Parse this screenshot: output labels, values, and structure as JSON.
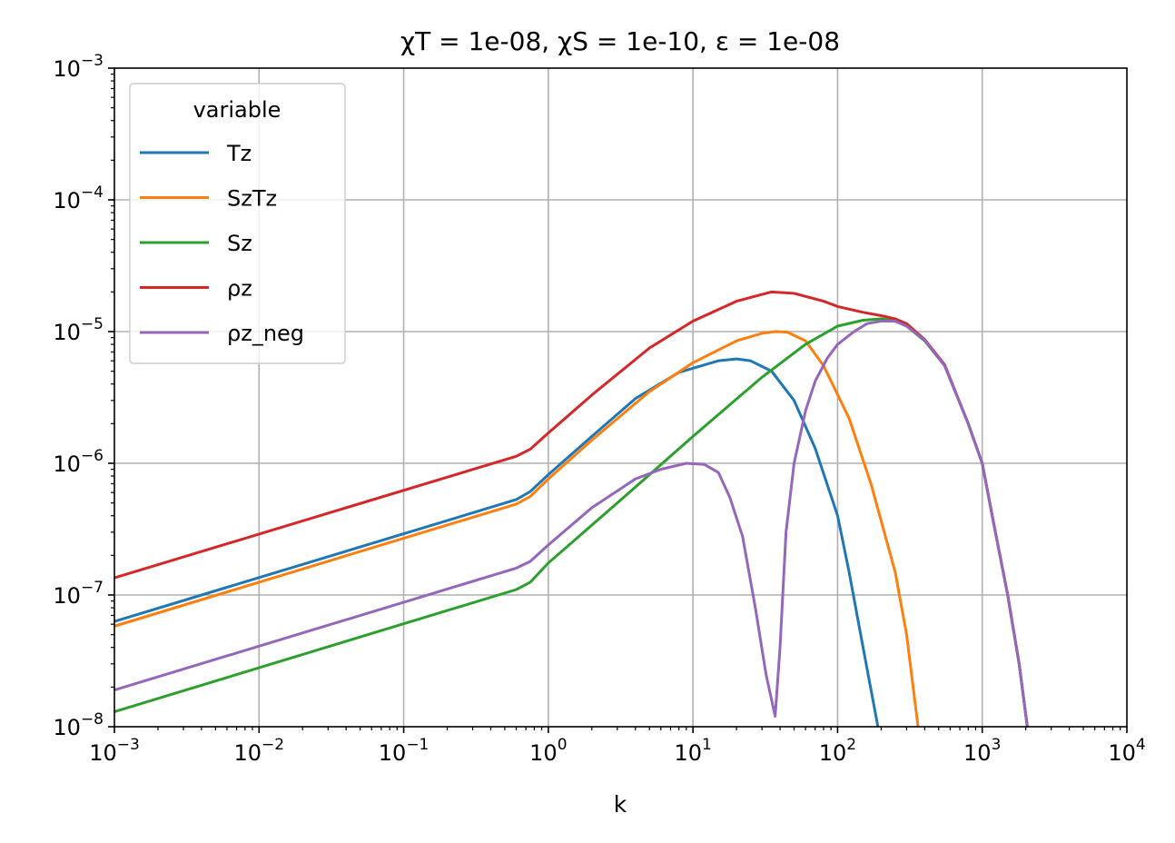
{
  "chart_data": {
    "type": "line",
    "title": "χT = 1e-08, χS = 1e-10, ε = 1e-08",
    "xlabel": "k",
    "ylabel": "",
    "xscale": "log",
    "yscale": "log",
    "xlim": [
      0.001,
      10000
    ],
    "ylim": [
      1e-08,
      0.001
    ],
    "grid": true,
    "legend": {
      "title": "variable",
      "placement": "top-left"
    },
    "x_ticks": [
      {
        "base": "10",
        "exp": "−3"
      },
      {
        "base": "10",
        "exp": "−2"
      },
      {
        "base": "10",
        "exp": "−1"
      },
      {
        "base": "10",
        "exp": "0"
      },
      {
        "base": "10",
        "exp": "1"
      },
      {
        "base": "10",
        "exp": "2"
      },
      {
        "base": "10",
        "exp": "3"
      },
      {
        "base": "10",
        "exp": "4"
      }
    ],
    "y_ticks": [
      {
        "base": "10",
        "exp": "−8"
      },
      {
        "base": "10",
        "exp": "−7"
      },
      {
        "base": "10",
        "exp": "−6"
      },
      {
        "base": "10",
        "exp": "−5"
      },
      {
        "base": "10",
        "exp": "−4"
      },
      {
        "base": "10",
        "exp": "−3"
      }
    ],
    "series": [
      {
        "name": "Tz",
        "color": "#1f77b4",
        "x": [
          0.001,
          0.6,
          0.75,
          1,
          2,
          4,
          8,
          15,
          20,
          25,
          35,
          50,
          70,
          100,
          120,
          150,
          190
        ],
        "y": [
          6.3e-08,
          5.3e-07,
          6.1e-07,
          8.2e-07,
          1.6e-06,
          3.1e-06,
          4.9e-06,
          6e-06,
          6.2e-06,
          6e-06,
          5e-06,
          3e-06,
          1.3e-06,
          4e-07,
          1.5e-07,
          4e-08,
          1e-08
        ]
      },
      {
        "name": "SzTz",
        "color": "#ff7f0e",
        "x": [
          0.001,
          0.6,
          0.75,
          1,
          2,
          5,
          10,
          20,
          30,
          37,
          45,
          60,
          80,
          120,
          170,
          250,
          300,
          360
        ],
        "y": [
          5.8e-08,
          4.9e-07,
          5.6e-07,
          7.6e-07,
          1.5e-06,
          3.5e-06,
          5.8e-06,
          8.5e-06,
          9.7e-06,
          1e-05,
          9.9e-06,
          8.5e-06,
          5.5e-06,
          2.2e-06,
          7e-07,
          1.5e-07,
          5e-08,
          1e-08
        ]
      },
      {
        "name": "Sz",
        "color": "#2ca02c",
        "x": [
          0.001,
          0.6,
          0.75,
          1,
          3,
          10,
          30,
          60,
          100,
          150,
          200,
          250,
          300,
          400,
          550,
          800,
          1000,
          1200,
          1500,
          1800,
          2050
        ],
        "y": [
          1.3e-08,
          1.1e-07,
          1.25e-07,
          1.75e-07,
          5e-07,
          1.6e-06,
          4.5e-06,
          8e-06,
          1.1e-05,
          1.22e-05,
          1.25e-05,
          1.2e-05,
          1.1e-05,
          8.5e-06,
          5.5e-06,
          2e-06,
          1e-06,
          3.5e-07,
          1e-07,
          3e-08,
          1e-08
        ]
      },
      {
        "name": "ρz",
        "color": "#d62728",
        "x": [
          0.001,
          0.6,
          0.75,
          1,
          2,
          5,
          10,
          20,
          35,
          50,
          80,
          100,
          150,
          200,
          250,
          300,
          400,
          550,
          800,
          1000,
          1200,
          1500,
          1800,
          2050
        ],
        "y": [
          1.35e-07,
          1.13e-06,
          1.28e-06,
          1.7e-06,
          3.3e-06,
          7.5e-06,
          1.2e-05,
          1.7e-05,
          2e-05,
          1.95e-05,
          1.7e-05,
          1.55e-05,
          1.4e-05,
          1.32e-05,
          1.25e-05,
          1.15e-05,
          8.7e-06,
          5.6e-06,
          2e-06,
          1e-06,
          3.5e-07,
          1e-07,
          3e-08,
          1e-08
        ]
      },
      {
        "name": "ρz_neg",
        "color": "#9467bd",
        "x": [
          0.001,
          0.6,
          0.75,
          1,
          2,
          4,
          6,
          9,
          12,
          15,
          18,
          22,
          27,
          32,
          37,
          40,
          44,
          50,
          60,
          70,
          85,
          100,
          130,
          160,
          200,
          250,
          300,
          400,
          550,
          800,
          1000,
          1200,
          1500,
          1800,
          2050
        ],
        "y": [
          1.9e-08,
          1.6e-07,
          1.8e-07,
          2.4e-07,
          4.6e-07,
          7.6e-07,
          9e-07,
          1e-06,
          9.8e-07,
          8.5e-07,
          5.5e-07,
          2.8e-07,
          8e-08,
          2.5e-08,
          1.2e-08,
          4e-08,
          3e-07,
          1e-06,
          2.5e-06,
          4.2e-06,
          6.3e-06,
          8e-06,
          1e-05,
          1.15e-05,
          1.2e-05,
          1.2e-05,
          1.1e-05,
          8.6e-06,
          5.5e-06,
          2e-06,
          1e-06,
          3.5e-07,
          1e-07,
          3e-08,
          1e-08
        ]
      }
    ]
  }
}
